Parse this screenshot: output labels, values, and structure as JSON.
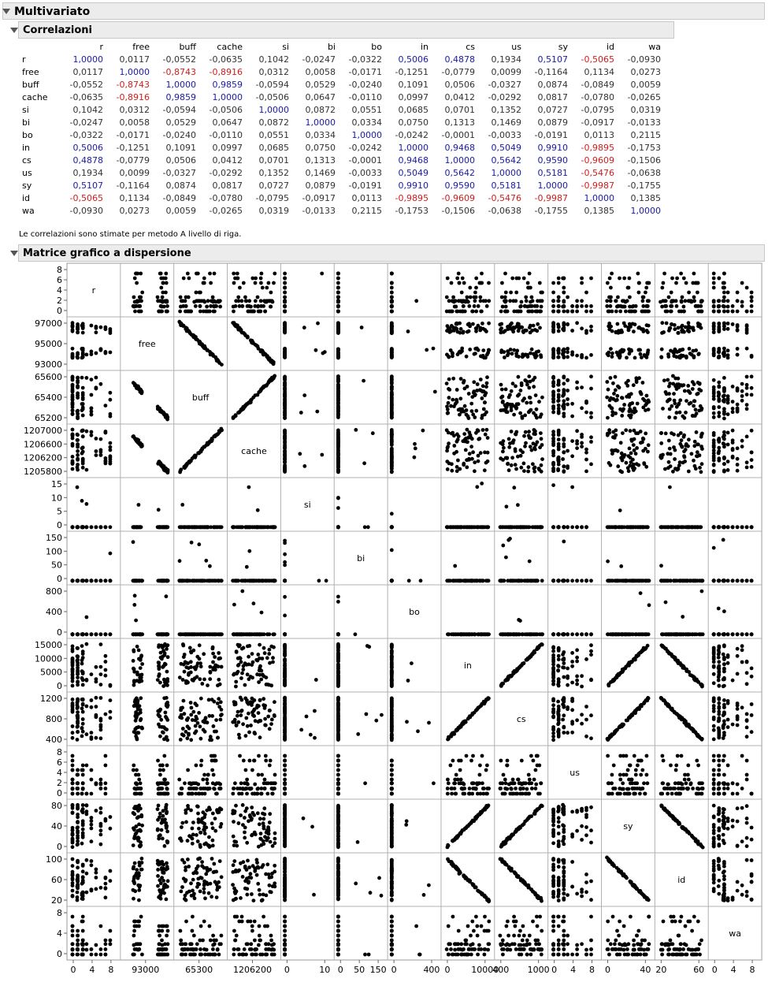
{
  "main_title": "Multivariato",
  "correlations": {
    "title": "Correlazioni",
    "columns": [
      "r",
      "free",
      "buff",
      "cache",
      "si",
      "bi",
      "bo",
      "in",
      "cs",
      "us",
      "sy",
      "id",
      "wa"
    ],
    "rows": [
      {
        "label": "r",
        "values": [
          "1,0000",
          "0,0117",
          "-0,0552",
          "-0,0635",
          "0,1042",
          "-0,0247",
          "-0,0322",
          "0,5006",
          "0,4878",
          "0,1934",
          "0,5107",
          "-0,5065",
          "-0,0930"
        ]
      },
      {
        "label": "free",
        "values": [
          "0,0117",
          "1,0000",
          "-0,8743",
          "-0,8916",
          "0,0312",
          "0,0058",
          "-0,0171",
          "-0,1251",
          "-0,0779",
          "0,0099",
          "-0,1164",
          "0,1134",
          "0,0273"
        ]
      },
      {
        "label": "buff",
        "values": [
          "-0,0552",
          "-0,8743",
          "1,0000",
          "0,9859",
          "-0,0594",
          "0,0529",
          "-0,0240",
          "0,1091",
          "0,0506",
          "-0,0327",
          "0,0874",
          "-0,0849",
          "0,0059"
        ]
      },
      {
        "label": "cache",
        "values": [
          "-0,0635",
          "-0,8916",
          "0,9859",
          "1,0000",
          "-0,0506",
          "0,0647",
          "-0,0110",
          "0,0997",
          "0,0412",
          "-0,0292",
          "0,0817",
          "-0,0780",
          "-0,0265"
        ]
      },
      {
        "label": "si",
        "values": [
          "0,1042",
          "0,0312",
          "-0,0594",
          "-0,0506",
          "1,0000",
          "0,0872",
          "0,0551",
          "0,0685",
          "0,0701",
          "0,1352",
          "0,0727",
          "-0,0795",
          "0,0319"
        ]
      },
      {
        "label": "bi",
        "values": [
          "-0,0247",
          "0,0058",
          "0,0529",
          "0,0647",
          "0,0872",
          "1,0000",
          "0,0334",
          "0,0750",
          "0,1313",
          "0,1469",
          "0,0879",
          "-0,0917",
          "-0,0133"
        ]
      },
      {
        "label": "bo",
        "values": [
          "-0,0322",
          "-0,0171",
          "-0,0240",
          "-0,0110",
          "0,0551",
          "0,0334",
          "1,0000",
          "-0,0242",
          "-0,0001",
          "-0,0033",
          "-0,0191",
          "0,0113",
          "0,2115"
        ]
      },
      {
        "label": "in",
        "values": [
          "0,5006",
          "-0,1251",
          "0,1091",
          "0,0997",
          "0,0685",
          "0,0750",
          "-0,0242",
          "1,0000",
          "0,9468",
          "0,5049",
          "0,9910",
          "-0,9895",
          "-0,1753"
        ]
      },
      {
        "label": "cs",
        "values": [
          "0,4878",
          "-0,0779",
          "0,0506",
          "0,0412",
          "0,0701",
          "0,1313",
          "-0,0001",
          "0,9468",
          "1,0000",
          "0,5642",
          "0,9590",
          "-0,9609",
          "-0,1506"
        ]
      },
      {
        "label": "us",
        "values": [
          "0,1934",
          "0,0099",
          "-0,0327",
          "-0,0292",
          "0,1352",
          "0,1469",
          "-0,0033",
          "0,5049",
          "0,5642",
          "1,0000",
          "0,5181",
          "-0,5476",
          "-0,0638"
        ]
      },
      {
        "label": "sy",
        "values": [
          "0,5107",
          "-0,1164",
          "0,0874",
          "0,0817",
          "0,0727",
          "0,0879",
          "-0,0191",
          "0,9910",
          "0,9590",
          "0,5181",
          "1,0000",
          "-0,9987",
          "-0,1755"
        ]
      },
      {
        "label": "id",
        "values": [
          "-0,5065",
          "0,1134",
          "-0,0849",
          "-0,0780",
          "-0,0795",
          "-0,0917",
          "0,0113",
          "-0,9895",
          "-0,9609",
          "-0,5476",
          "-0,9987",
          "1,0000",
          "0,1385"
        ]
      },
      {
        "label": "wa",
        "values": [
          "-0,0930",
          "0,0273",
          "0,0059",
          "-0,0265",
          "0,0319",
          "-0,0133",
          "0,2115",
          "-0,1753",
          "-0,1506",
          "-0,0638",
          "-0,1755",
          "0,1385",
          "1,0000"
        ]
      }
    ]
  },
  "note": "Le correlazioni sono stimate per metodo A livello di riga.",
  "colors": {
    "positive_strong": "#1a1aa8",
    "negative_strong": "#d01c1c",
    "point": "#000000",
    "header_bg": "#ececec"
  },
  "chart_data": {
    "type": "scatter",
    "title": "Matrice grafico a dispersione",
    "variables": [
      "r",
      "free",
      "buff",
      "cache",
      "si",
      "bi",
      "bo",
      "in",
      "cs",
      "us",
      "sy",
      "id",
      "wa"
    ],
    "y_axis_ticks": [
      [
        "8",
        "6",
        "4",
        "2",
        "0"
      ],
      [
        "97000",
        "95000",
        "93000"
      ],
      [
        "65600",
        "65400",
        "65200"
      ],
      [
        "1207000",
        "1206600",
        "1206200",
        "1205800"
      ],
      [
        "15",
        "10",
        "5",
        "0"
      ],
      [
        "150",
        "100",
        "50",
        "0"
      ],
      [
        "800",
        "400",
        "0"
      ],
      [
        "15000",
        "10000",
        "5000",
        "0"
      ],
      [
        "1200",
        "800",
        "400"
      ],
      [
        "8",
        "6",
        "4",
        "2",
        "0"
      ],
      [
        "80",
        "40",
        "0"
      ],
      [
        "100",
        "60",
        "20"
      ],
      [
        "8",
        "4",
        "0"
      ]
    ],
    "x_axis_ticks": [
      [
        "0",
        "4",
        "8"
      ],
      [
        "93000"
      ],
      [
        "65300"
      ],
      [
        "1206200"
      ],
      [
        "0",
        "10"
      ],
      [
        "0",
        "50",
        "150"
      ],
      [
        "0",
        "400"
      ],
      [
        "0",
        "10000"
      ],
      [
        "400",
        "1000"
      ],
      [
        "0",
        "4",
        "8"
      ],
      [
        "0",
        "40"
      ],
      [
        "20",
        "60"
      ],
      [
        "0",
        "4",
        "8"
      ]
    ],
    "ranges": [
      [
        0,
        9
      ],
      [
        92000,
        98000
      ],
      [
        65150,
        65700
      ],
      [
        1205700,
        1207100
      ],
      [
        0,
        17
      ],
      [
        0,
        180
      ],
      [
        0,
        1100
      ],
      [
        0,
        19000
      ],
      [
        300,
        1500
      ],
      [
        0,
        9
      ],
      [
        0,
        85
      ],
      [
        15,
        105
      ],
      [
        0,
        9
      ]
    ],
    "kind": [
      "discrete",
      "bimodal",
      "uniform",
      "uniform",
      "spike",
      "spike",
      "spike",
      "wide",
      "wide",
      "discrete",
      "wide",
      "wide",
      "discrete"
    ],
    "correlation_matrix": [
      [
        1,
        0.0117,
        -0.0552,
        -0.0635,
        0.1042,
        -0.0247,
        -0.0322,
        0.5006,
        0.4878,
        0.1934,
        0.5107,
        -0.5065,
        -0.093
      ],
      [
        0.0117,
        1,
        -0.8743,
        -0.8916,
        0.0312,
        0.0058,
        -0.0171,
        -0.1251,
        -0.0779,
        0.0099,
        -0.1164,
        0.1134,
        0.0273
      ],
      [
        -0.0552,
        -0.8743,
        1,
        0.9859,
        -0.0594,
        0.0529,
        -0.024,
        0.1091,
        0.0506,
        -0.0327,
        0.0874,
        -0.0849,
        0.0059
      ],
      [
        -0.0635,
        -0.8916,
        0.9859,
        1,
        -0.0506,
        0.0647,
        -0.011,
        0.0997,
        0.0412,
        -0.0292,
        0.0817,
        -0.078,
        -0.0265
      ],
      [
        0.1042,
        0.0312,
        -0.0594,
        -0.0506,
        1,
        0.0872,
        0.0551,
        0.0685,
        0.0701,
        0.1352,
        0.0727,
        -0.0795,
        0.0319
      ],
      [
        -0.0247,
        0.0058,
        0.0529,
        0.0647,
        0.0872,
        1,
        0.0334,
        0.075,
        0.1313,
        0.1469,
        0.0879,
        -0.0917,
        -0.0133
      ],
      [
        -0.0322,
        -0.0171,
        -0.024,
        -0.011,
        0.0551,
        0.0334,
        1,
        -0.0242,
        -0.0001,
        -0.0033,
        -0.0191,
        0.0113,
        0.2115
      ],
      [
        0.5006,
        -0.1251,
        0.1091,
        0.0997,
        0.0685,
        0.075,
        -0.0242,
        1,
        0.9468,
        0.5049,
        0.991,
        -0.9895,
        -0.1753
      ],
      [
        0.4878,
        -0.0779,
        0.0506,
        0.0412,
        0.0701,
        0.1313,
        -0.0001,
        0.9468,
        1,
        0.5642,
        0.959,
        -0.9609,
        -0.1506
      ],
      [
        0.1934,
        0.0099,
        -0.0327,
        -0.0292,
        0.1352,
        0.1469,
        -0.0033,
        0.5049,
        0.5642,
        1,
        0.5181,
        -0.5476,
        -0.0638
      ],
      [
        0.5107,
        -0.1164,
        0.0874,
        0.0817,
        0.0727,
        0.0879,
        -0.0191,
        0.991,
        0.959,
        0.5181,
        1,
        -0.9987,
        -0.1755
      ],
      [
        -0.5065,
        0.1134,
        -0.0849,
        -0.078,
        -0.0795,
        -0.0917,
        0.0113,
        -0.9895,
        -0.9609,
        -0.5476,
        -0.9987,
        1,
        0.1385
      ],
      [
        -0.093,
        0.0273,
        0.0059,
        -0.0265,
        0.0319,
        -0.0133,
        0.2115,
        -0.1753,
        -0.1506,
        -0.0638,
        -0.1755,
        0.1385,
        1
      ]
    ],
    "grid": false,
    "legend": "none"
  }
}
